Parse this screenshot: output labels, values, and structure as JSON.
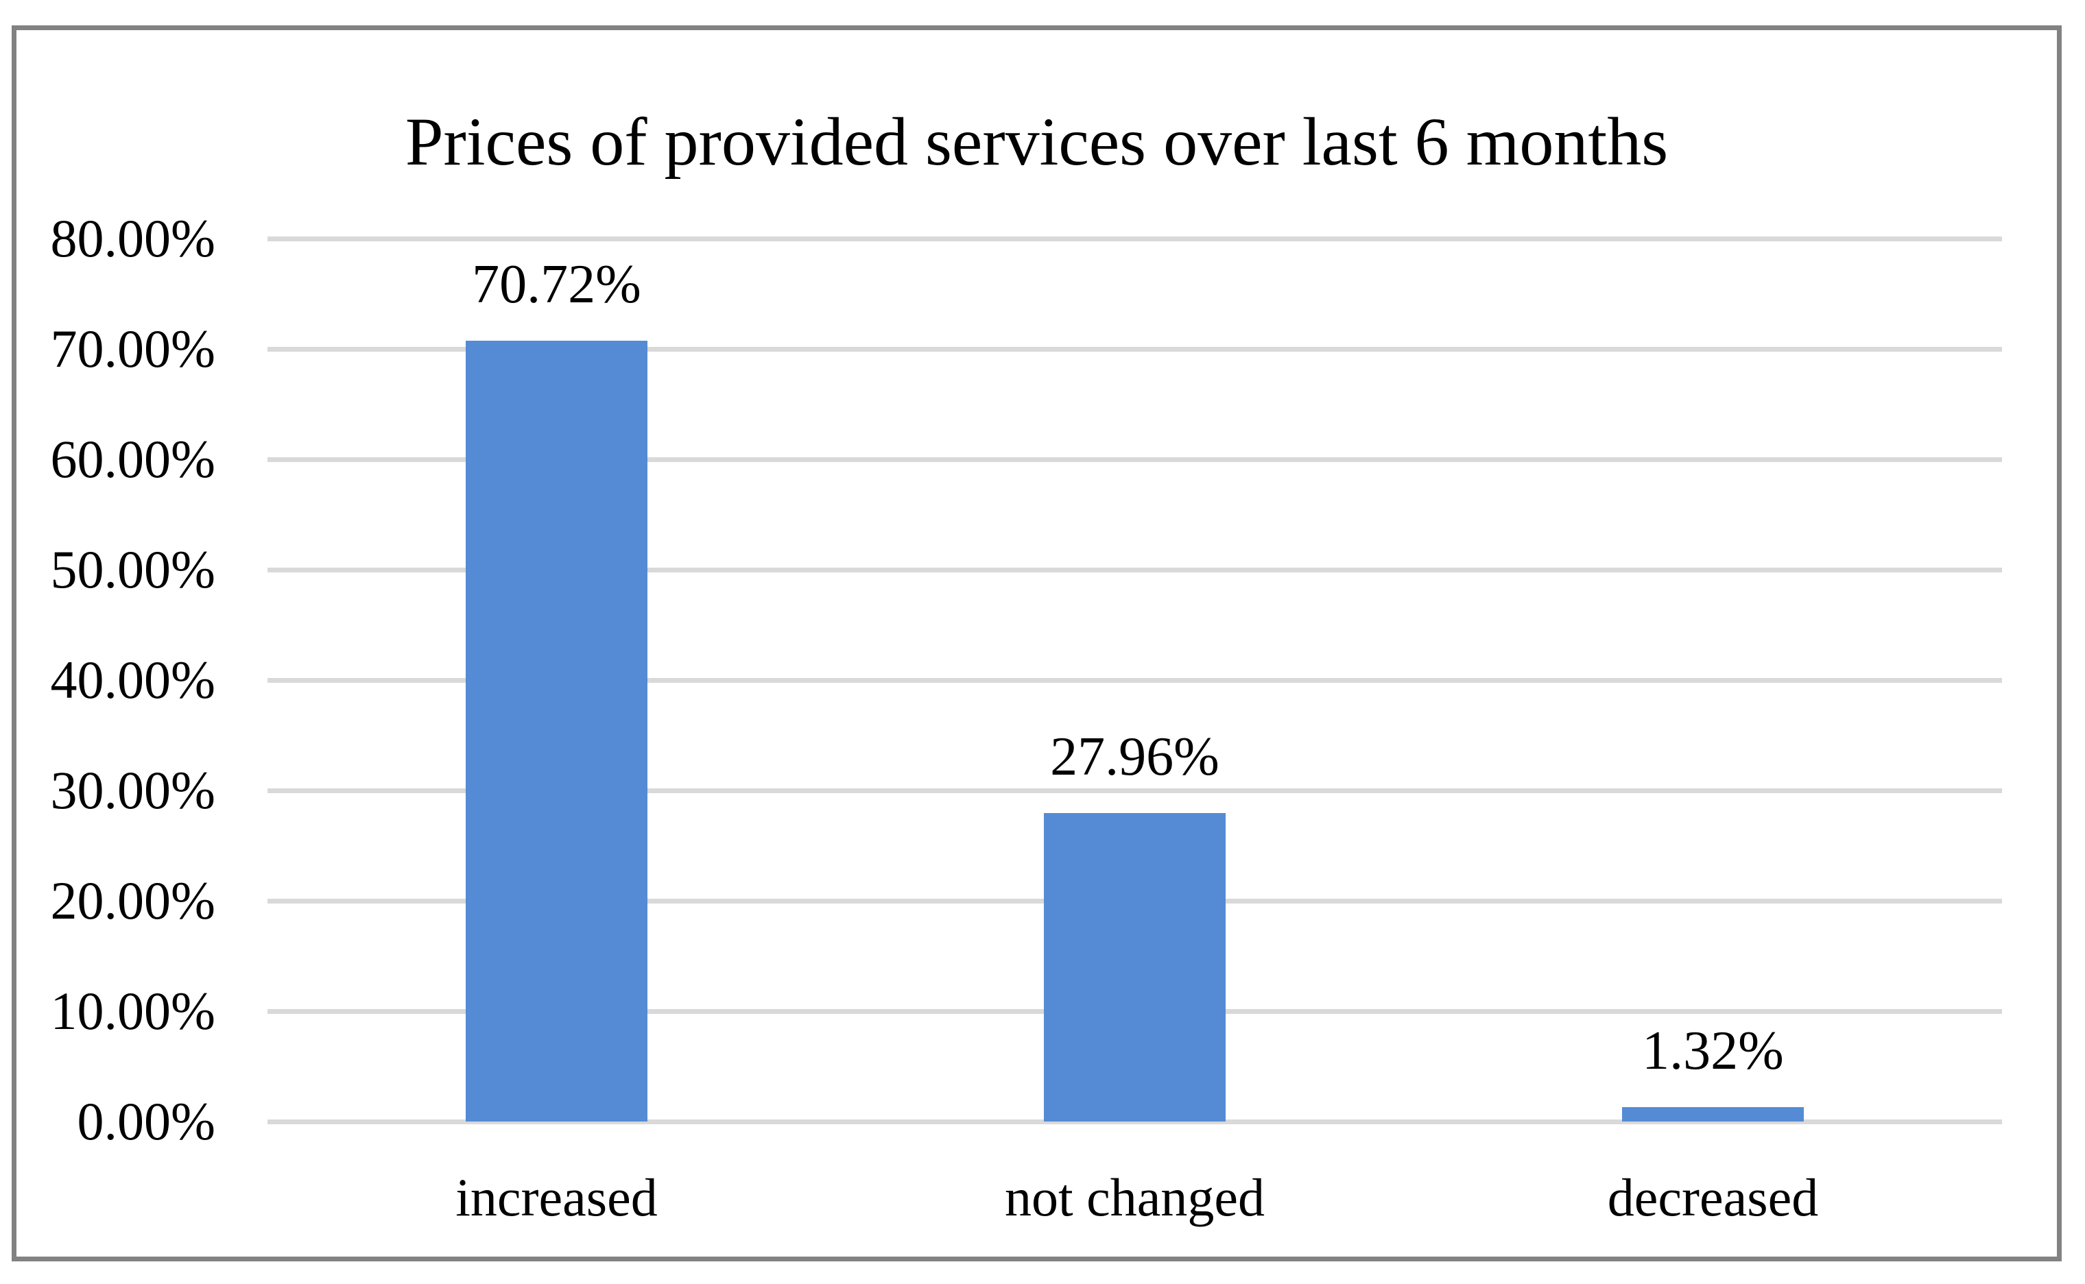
{
  "chart_data": {
    "type": "bar",
    "title": "Prices of provided services over last 6 months",
    "categories": [
      "increased",
      "not changed",
      "decreased"
    ],
    "values": [
      70.72,
      27.96,
      1.32
    ],
    "data_labels": [
      "70.72%",
      "27.96%",
      "1.32%"
    ],
    "yticks": [
      "0.00%",
      "10.00%",
      "20.00%",
      "30.00%",
      "40.00%",
      "50.00%",
      "60.00%",
      "70.00%",
      "80.00%"
    ],
    "ylim": [
      0,
      80
    ],
    "ytick_step": 10,
    "xlabel": "",
    "ylabel": "",
    "grid": true,
    "legend": "none",
    "colors": {
      "bar": "#548BD4",
      "gridline": "#D9D9D9",
      "axis_line": "#D9D9D9",
      "frame_border": "#828282",
      "background": "#FFFFFF",
      "text": "#000000"
    }
  }
}
